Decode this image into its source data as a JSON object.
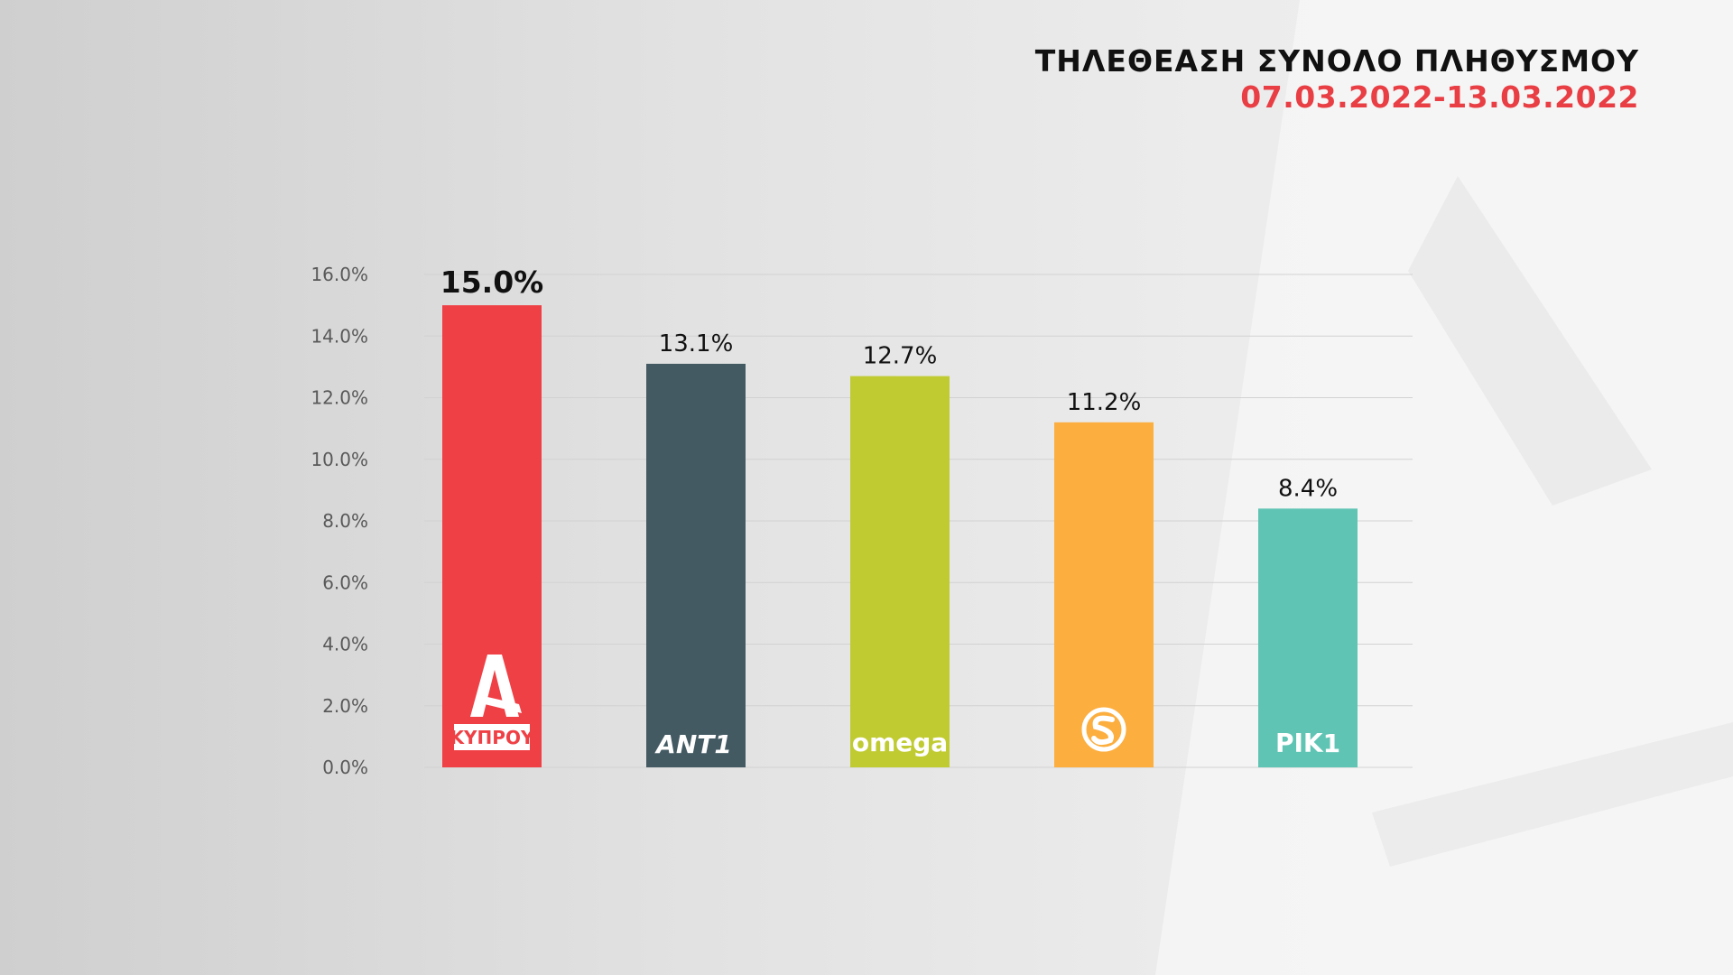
{
  "header": {
    "title": "ΤΗΛΕΘΕΑΣΗ ΣΥΝΟΛΟ ΠΛΗΘΥΣΜΟΥ",
    "subtitle": "07.03.2022-13.03.2022"
  },
  "chart_data": {
    "type": "bar",
    "title": "ΤΗΛΕΘΕΑΣΗ ΣΥΝΟΛΟ ΠΛΗΘΥΣΜΟΥ",
    "subtitle": "07.03.2022-13.03.2022",
    "categories": [
      "ALPHA ΚΥΠΡΟΥ",
      "ANT1",
      "omega",
      "SIGMA",
      "RIK1"
    ],
    "values": [
      15.0,
      13.1,
      12.7,
      11.2,
      8.4
    ],
    "value_labels": [
      "15.0%",
      "13.1%",
      "12.7%",
      "11.2%",
      "8.4%"
    ],
    "colors": [
      "#ef4045",
      "#435a63",
      "#c0cb32",
      "#fcae3f",
      "#5fc4b4"
    ],
    "ylim": [
      0,
      16
    ],
    "yticks": [
      "0.0%",
      "2.0%",
      "4.0%",
      "6.0%",
      "8.0%",
      "10.0%",
      "12.0%",
      "14.0%",
      "16.0%"
    ],
    "grid": true,
    "logos": [
      {
        "icon": "alpha-logo-icon",
        "caption": "ΚΥΠΡΟΥ"
      },
      {
        "icon": "ant1-logo-icon",
        "caption": "ANT1"
      },
      {
        "icon": "omega-logo-icon",
        "caption": "omega"
      },
      {
        "icon": "sigma-logo-icon",
        "caption": ""
      },
      {
        "icon": "rik1-logo-icon",
        "caption": "ΡΙΚ1"
      }
    ]
  }
}
